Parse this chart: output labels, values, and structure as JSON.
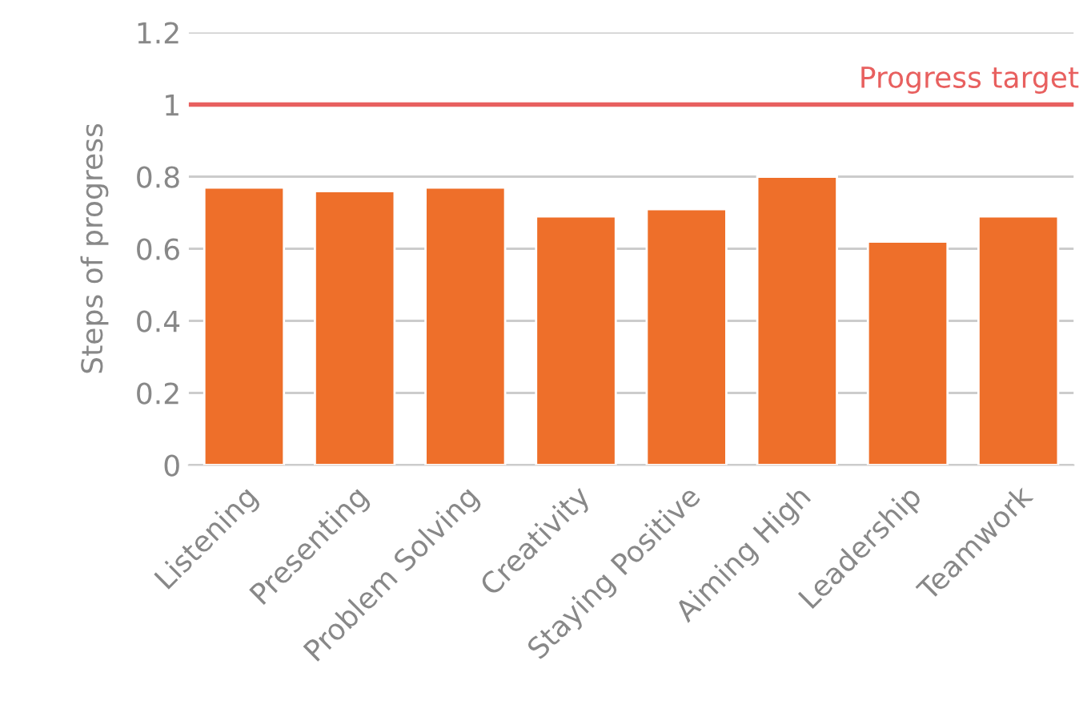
{
  "chart_data": {
    "type": "bar",
    "ylabel": "Steps of progress",
    "categories": [
      "Listening",
      "Presenting",
      "Problem Solving",
      "Creativity",
      "Staying Positive",
      "Aiming High",
      "Leadership",
      "Teamwork"
    ],
    "values": [
      0.77,
      0.76,
      0.77,
      0.69,
      0.71,
      0.8,
      0.62,
      0.69
    ],
    "color": "#ee6f2a",
    "ylim": [
      0,
      1.2
    ],
    "yticks": [
      0,
      0.2,
      0.4,
      0.6,
      0.8,
      1,
      1.2
    ],
    "grid": "y",
    "ref_lines": [
      {
        "axis": "y",
        "value": 1,
        "label": "Progress target",
        "color": "#e8605f"
      }
    ]
  }
}
